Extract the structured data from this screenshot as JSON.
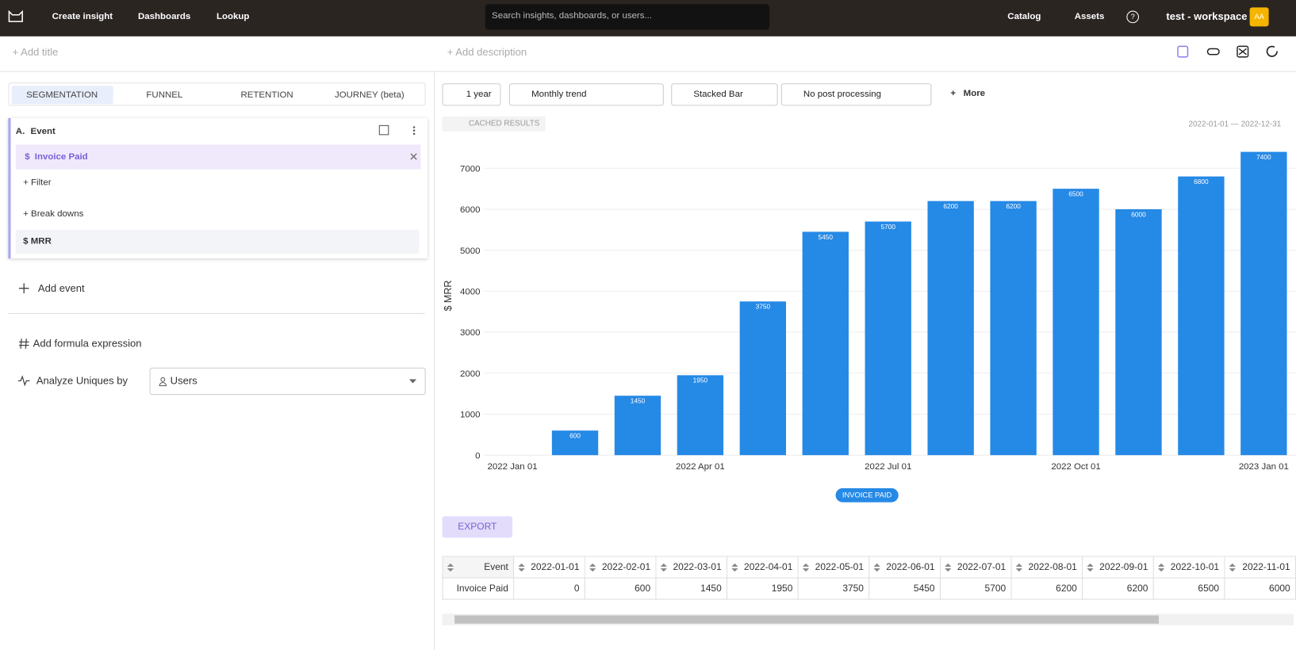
{
  "nav": {
    "create": "Create insight",
    "dashboards": "Dashboards",
    "lookup": "Lookup",
    "search": "Search insights, dashboards, or users...",
    "catalog": "Catalog",
    "assets": "Assets",
    "help": "?",
    "workspace": "test - workspace",
    "avatar": "AA"
  },
  "header": {
    "title": "+ Add title",
    "description": "+ Add description"
  },
  "tabs": [
    "SEGMENTATION",
    "FUNNEL",
    "RETENTION",
    "JOURNEY (beta)"
  ],
  "event": {
    "letter": "A.",
    "label": "Event",
    "symbol": "$",
    "name": "Invoice Paid",
    "filter": "+ Filter",
    "breakdowns": "+ Break downs",
    "measure": "$ MRR"
  },
  "panel": {
    "add_event": "Add event",
    "formula": "Add formula expression",
    "analyze": "Analyze Uniques by",
    "uniques": "Users"
  },
  "toolbar": {
    "range": "1 year",
    "trend": "Monthly trend",
    "chart_type": "Stacked Bar",
    "post": "No post processing",
    "more": "More",
    "cached": "CACHED RESULTS",
    "dates": "2022-01-01 — 2022-12-31",
    "export": "EXPORT"
  },
  "chart_data": {
    "type": "bar",
    "y_label": "$ MRR",
    "categories": [
      "2022 Jan 01",
      null,
      null,
      "2022 Apr 01",
      null,
      null,
      "2022 Jul 01",
      null,
      null,
      "2022 Oct 01",
      null,
      null,
      "2023 Jan 01"
    ],
    "series": [
      {
        "name": "INVOICE PAID",
        "color": "#2589e6",
        "values": [
          0,
          600,
          1450,
          1950,
          3750,
          5450,
          5700,
          6200,
          6200,
          6500,
          6000,
          6800,
          7400
        ]
      }
    ],
    "ylim": [
      0,
      7800
    ],
    "yticks": [
      0,
      1000,
      2000,
      3000,
      4000,
      5000,
      6000,
      7000
    ],
    "grid": true
  },
  "table": {
    "columns": [
      "Event",
      "2022-01-01",
      "2022-02-01",
      "2022-03-01",
      "2022-04-01",
      "2022-05-01",
      "2022-06-01",
      "2022-07-01",
      "2022-08-01",
      "2022-09-01",
      "2022-10-01",
      "2022-11-01"
    ],
    "rows": [
      [
        "Invoice Paid",
        "0",
        "600",
        "1450",
        "1950",
        "3750",
        "5450",
        "5700",
        "6200",
        "6200",
        "6500",
        "6000"
      ]
    ]
  }
}
